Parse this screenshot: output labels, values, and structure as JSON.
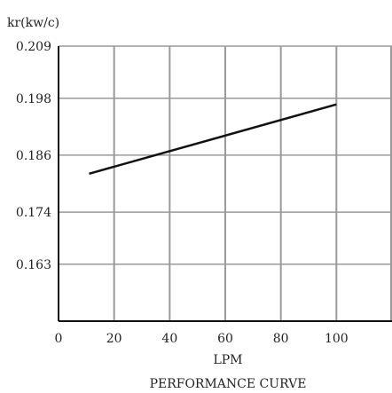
{
  "chart_data": {
    "type": "line",
    "title": "",
    "subtitle": "",
    "ylabel": "kr(kw/c)",
    "xlabel": "LPM",
    "caption": "PERFORMANCE CURVE",
    "x_ticks": [
      "0",
      "20",
      "40",
      "60",
      "80",
      "100"
    ],
    "y_ticks": [
      "0.209",
      "0.198",
      "0.186",
      "0.174",
      "0.163"
    ],
    "xlim": [
      0,
      120
    ],
    "ylim": [
      0.151,
      0.209
    ],
    "grid": true,
    "series": [
      {
        "x": [
          11,
          100
        ],
        "y": [
          0.1821,
          0.1967
        ]
      }
    ],
    "colors": {
      "line": "#111111",
      "grid": "#9a9a9a",
      "axis": "#111111",
      "text": "#222222"
    }
  }
}
